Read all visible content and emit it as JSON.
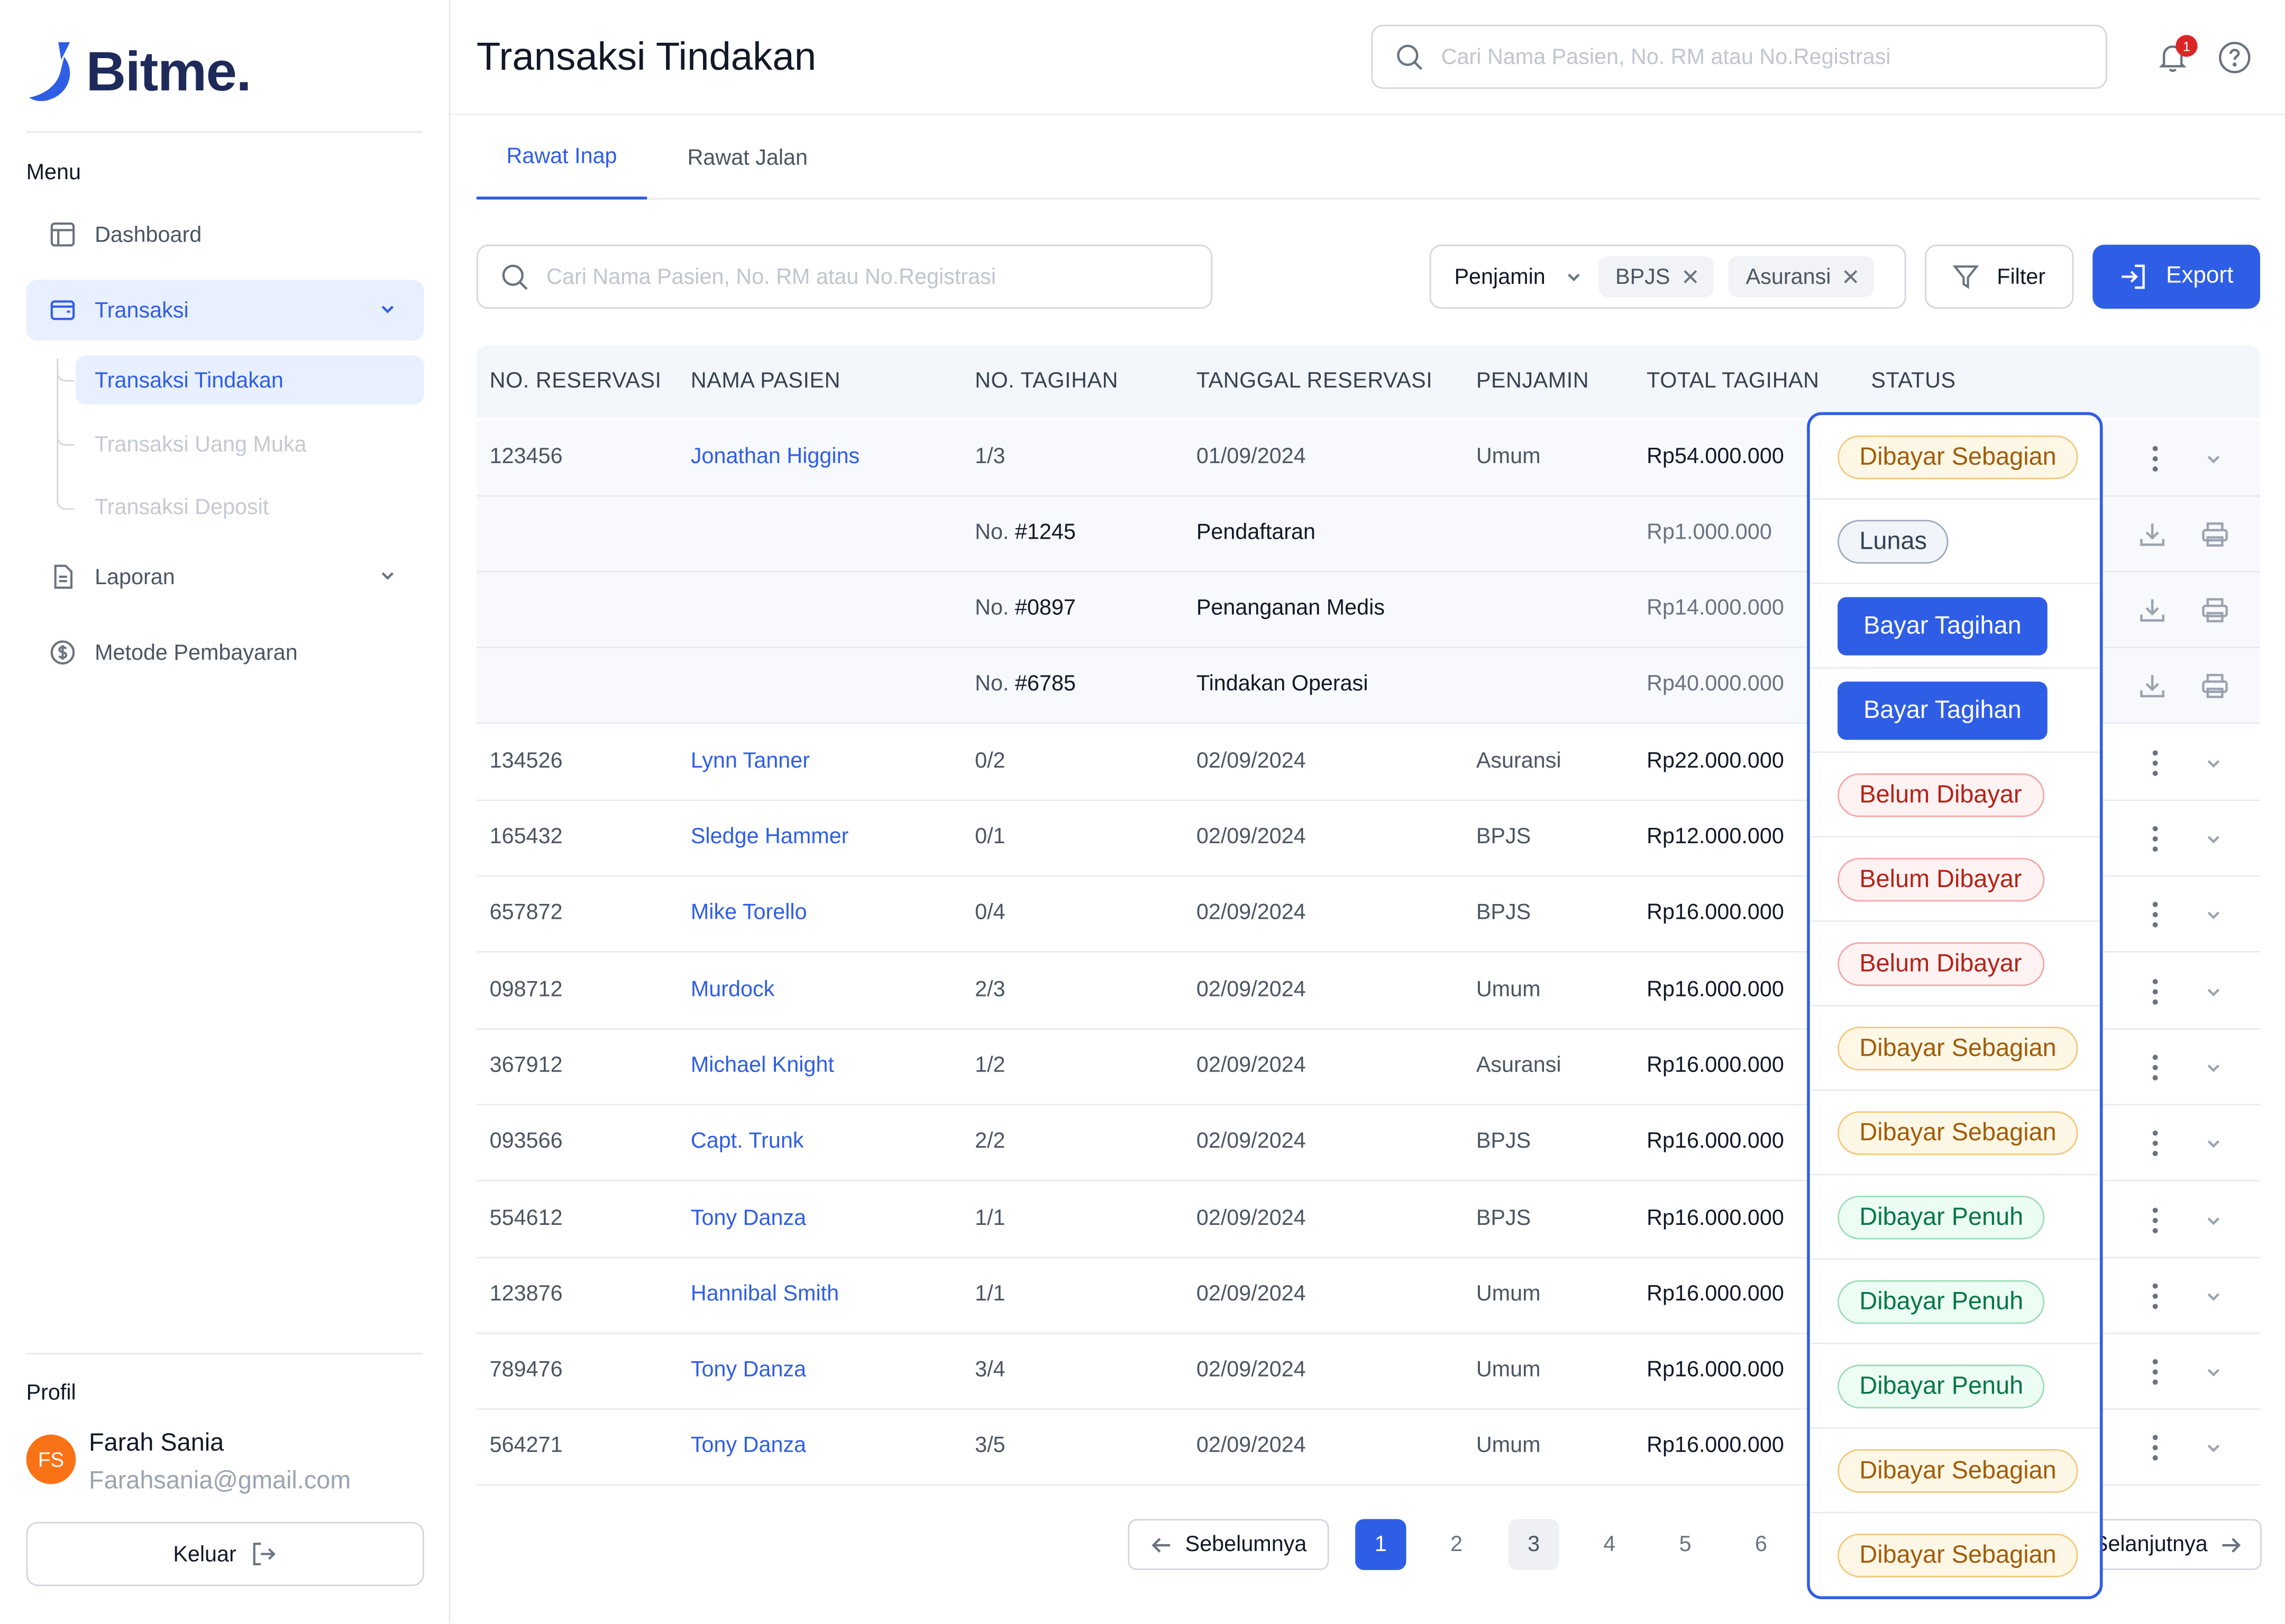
{
  "app": {
    "name": "Bitme.",
    "menu_title": "Menu",
    "profil_title": "Profil"
  },
  "sidebar": {
    "items": [
      {
        "label": "Dashboard",
        "icon": "layout-icon"
      },
      {
        "label": "Transaksi",
        "icon": "wallet-icon"
      },
      {
        "label": "Laporan",
        "icon": "document-icon"
      },
      {
        "label": "Metode Pembayaran",
        "icon": "dollar-icon"
      }
    ],
    "sub_items": [
      {
        "label": "Transaksi Tindakan"
      },
      {
        "label": "Transaksi Uang Muka"
      },
      {
        "label": "Transaksi Deposit"
      }
    ]
  },
  "profile": {
    "initials": "FS",
    "name": "Farah Sania",
    "email": "Farahsania@gmail.com",
    "logout_label": "Keluar"
  },
  "header": {
    "title": "Transaksi Tindakan",
    "search_placeholder": "Cari Nama Pasien, No. RM atau No.Registrasi",
    "notification_count": "1"
  },
  "tabs": [
    {
      "label": "Rawat Inap"
    },
    {
      "label": "Rawat Jalan"
    }
  ],
  "filters": {
    "search_placeholder": "Cari Nama Pasien, No. RM atau No.Registrasi",
    "penjamin_label": "Penjamin",
    "chips": [
      "BPJS",
      "Asuransi"
    ],
    "filter_label": "Filter",
    "export_label": "Export"
  },
  "table": {
    "headers": [
      "NO. RESERVASI",
      "NAMA PASIEN",
      "NO. TAGIHAN",
      "TANGGAL RESERVASI",
      "PENJAMIN",
      "TOTAL TAGIHAN",
      "STATUS"
    ],
    "rows": [
      {
        "reservasi": "123456",
        "nama": "Jonathan Higgins",
        "tagihan": "1/3",
        "tanggal": "01/09/2024",
        "penjamin": "Umum",
        "total": "Rp54.000.000",
        "status": "Dibayar Sebagian"
      },
      {
        "reservasi": "134526",
        "nama": "Lynn Tanner",
        "tagihan": "0/2",
        "tanggal": "02/09/2024",
        "penjamin": "Asuransi",
        "total": "Rp22.000.000",
        "status": "Belum Dibayar"
      },
      {
        "reservasi": "165432",
        "nama": "Sledge Hammer",
        "tagihan": "0/1",
        "tanggal": "02/09/2024",
        "penjamin": "BPJS",
        "total": "Rp12.000.000",
        "status": "Belum Dibayar"
      },
      {
        "reservasi": "657872",
        "nama": "Mike Torello",
        "tagihan": "0/4",
        "tanggal": "02/09/2024",
        "penjamin": "BPJS",
        "total": "Rp16.000.000",
        "status": "Belum Dibayar"
      },
      {
        "reservasi": "098712",
        "nama": "Murdock",
        "tagihan": "2/3",
        "tanggal": "02/09/2024",
        "penjamin": "Umum",
        "total": "Rp16.000.000",
        "status": "Dibayar Sebagian"
      },
      {
        "reservasi": "367912",
        "nama": "Michael Knight",
        "tagihan": "1/2",
        "tanggal": "02/09/2024",
        "penjamin": "Asuransi",
        "total": "Rp16.000.000",
        "status": "Dibayar Sebagian"
      },
      {
        "reservasi": "093566",
        "nama": "Capt. Trunk",
        "tagihan": "2/2",
        "tanggal": "02/09/2024",
        "penjamin": "BPJS",
        "total": "Rp16.000.000",
        "status": "Dibayar Penuh"
      },
      {
        "reservasi": "554612",
        "nama": "Tony Danza",
        "tagihan": "1/1",
        "tanggal": "02/09/2024",
        "penjamin": "BPJS",
        "total": "Rp16.000.000",
        "status": "Dibayar Penuh"
      },
      {
        "reservasi": "123876",
        "nama": "Hannibal Smith",
        "tagihan": "1/1",
        "tanggal": "02/09/2024",
        "penjamin": "Umum",
        "total": "Rp16.000.000",
        "status": "Dibayar Penuh"
      },
      {
        "reservasi": "789476",
        "nama": "Tony Danza",
        "tagihan": "3/4",
        "tanggal": "02/09/2024",
        "penjamin": "Umum",
        "total": "Rp16.000.000",
        "status": "Dibayar Sebagian"
      },
      {
        "reservasi": "564271",
        "nama": "Tony Danza",
        "tagihan": "3/5",
        "tanggal": "02/09/2024",
        "penjamin": "Umum",
        "total": "Rp16.000.000",
        "status": "Dibayar Sebagian"
      }
    ],
    "sub_rows": [
      {
        "prefix": "No.",
        "number": "#1245",
        "tindakan": "Pendaftaran",
        "total": "Rp1.000.000",
        "status": "Lunas"
      },
      {
        "prefix": "No.",
        "number": "#0897",
        "tindakan": "Penanganan Medis",
        "total": "Rp14.000.000",
        "status": "Bayar Tagihan"
      },
      {
        "prefix": "No.",
        "number": "#6785",
        "tindakan": "Tindakan Operasi",
        "total": "Rp40.000.000",
        "status": "Bayar Tagihan"
      }
    ]
  },
  "pagination": {
    "prev_label": "Sebelumnya",
    "pages": [
      "1",
      "2",
      "3",
      "4",
      "5",
      "6"
    ],
    "current": "1",
    "next_label": "Selanjutnya"
  },
  "colors": {
    "primary": "#2f5ee6",
    "brand_dark": "#1e2a5a",
    "avatar": "#f97316",
    "danger": "#dc2626"
  }
}
